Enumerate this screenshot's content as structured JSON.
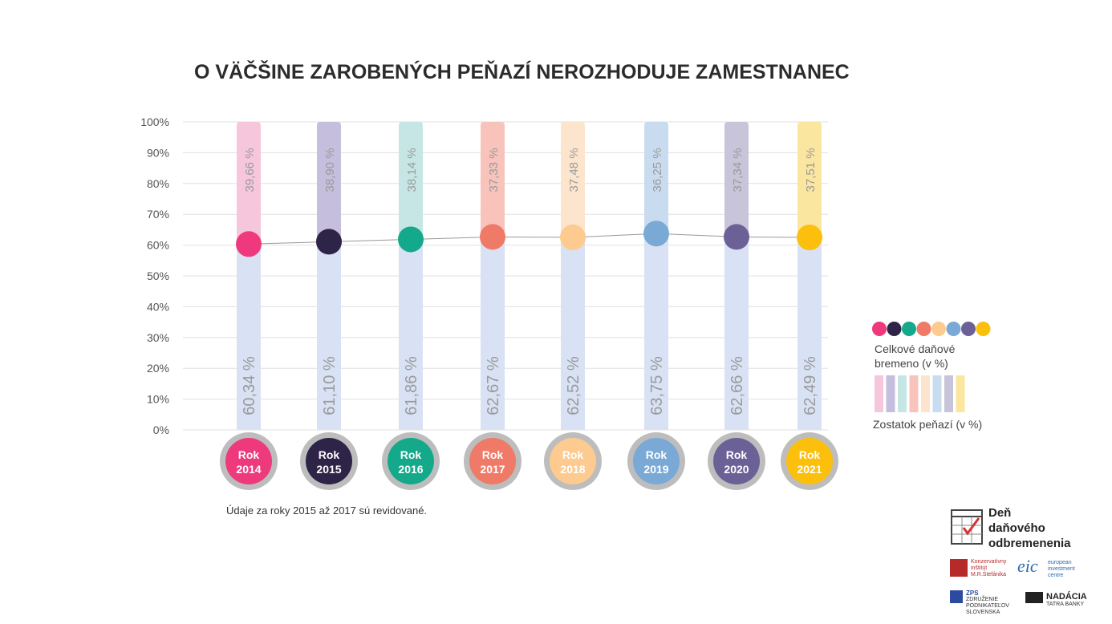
{
  "title": "O VÄČŠINE ZAROBENÝCH PEŇAZÍ NEROZHODUJE ZAMESTNANEC",
  "note": "Údaje za roky 2015 až 2017 sú revidované.",
  "legend": {
    "dot_label": "Celkové daňové bremeno (v %)",
    "bar_label": "Zostatok peňazí (v %)"
  },
  "logos": {
    "main_line1": "Deň",
    "main_line2": "daňového",
    "main_line3": "odbremenenia",
    "kimrs": "Konzervatívny inštitút M.R.Štefánika",
    "eic_big": "eic",
    "eic_small": "european investment centre",
    "zps": "ZPS",
    "zps_small": "ZDRUŽENIE PODNIKATEĽOV SLOVENSKA",
    "nadacia": "NADÁCIA",
    "nadacia_small": "TATRA BANKY"
  },
  "chart_data": {
    "type": "bar",
    "ylim": [
      0,
      100
    ],
    "yticks": [
      "0%",
      "10%",
      "20%",
      "30%",
      "40%",
      "50%",
      "60%",
      "70%",
      "80%",
      "90%",
      "100%"
    ],
    "categories": [
      "Rok 2014",
      "Rok 2015",
      "Rok 2016",
      "Rok 2017",
      "Rok 2018",
      "Rok 2019",
      "Rok 2020",
      "Rok 2021"
    ],
    "years": [
      "2014",
      "2015",
      "2016",
      "2017",
      "2018",
      "2019",
      "2020",
      "2021"
    ],
    "year_prefix": "Rok",
    "series": [
      {
        "name": "Celkové daňové bremeno (v %)",
        "values": [
          60.34,
          61.1,
          61.86,
          62.67,
          62.52,
          63.75,
          62.66,
          62.49
        ],
        "labels": [
          "60,34 %",
          "61,10 %",
          "61,86 %",
          "62,67 %",
          "62,52 %",
          "63,75 %",
          "62,66 %",
          "62,49 %"
        ]
      },
      {
        "name": "Zostatok peňazí (v %)",
        "values": [
          39.66,
          38.9,
          38.14,
          37.33,
          37.48,
          36.25,
          37.34,
          37.51
        ],
        "labels": [
          "39,66 %",
          "38,90 %",
          "38,14 %",
          "37,33 %",
          "37,48 %",
          "36,25 %",
          "37,34 %",
          "37,51 %"
        ]
      }
    ],
    "colors": {
      "dots": [
        "#ee3a7c",
        "#2d2447",
        "#14a98b",
        "#f07a68",
        "#fdca8f",
        "#7aa9d6",
        "#6b6196",
        "#fbbf0c"
      ],
      "tops": [
        "#f6c6dc",
        "#c5bedc",
        "#c6e6e6",
        "#f8c3bb",
        "#fde5cd",
        "#c9dcef",
        "#c8c4d9",
        "#fbe6a0"
      ],
      "bottom": "#d8e2f4",
      "grid": "#e0e0e0",
      "line": "#999999"
    }
  }
}
